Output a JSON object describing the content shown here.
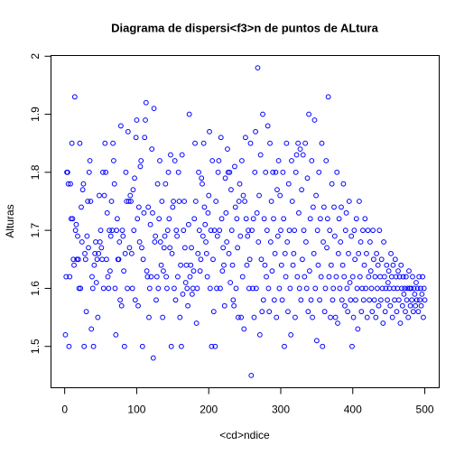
{
  "chart_data": {
    "type": "scatter",
    "title": "Diagrama de dispersi<f3>n de puntos de ALtura",
    "xlabel": "<cd>ndice",
    "ylabel": "Alturas",
    "color": "#0000ff",
    "xlim": [
      -19,
      520
    ],
    "xticks": [
      0,
      100,
      200,
      300,
      400,
      500
    ],
    "ylim": [
      1.4288,
      2.0012
    ],
    "yticks": [
      1.5,
      1.6,
      1.7,
      1.8,
      1.9,
      2.0
    ],
    "values": [
      1.52,
      1.62,
      1.8,
      1.8,
      1.78,
      1.5,
      1.62,
      1.78,
      1.72,
      1.85,
      1.72,
      1.65,
      1.64,
      1.93,
      1.7,
      1.71,
      1.65,
      1.69,
      1.65,
      1.6,
      1.85,
      1.6,
      1.74,
      1.68,
      1.77,
      1.78,
      1.5,
      1.66,
      1.65,
      1.56,
      1.69,
      1.75,
      1.67,
      1.8,
      1.82,
      1.75,
      1.53,
      1.62,
      1.6,
      1.5,
      1.64,
      1.66,
      1.68,
      1.61,
      1.65,
      1.55,
      1.66,
      1.76,
      1.68,
      1.7,
      1.67,
      1.65,
      1.8,
      1.6,
      1.76,
      1.85,
      1.8,
      1.65,
      1.73,
      1.62,
      1.6,
      1.7,
      1.63,
      1.69,
      1.75,
      1.7,
      1.85,
      1.82,
      1.78,
      1.6,
      1.52,
      1.7,
      1.72,
      1.65,
      1.65,
      1.68,
      1.58,
      1.88,
      1.57,
      1.7,
      1.69,
      1.63,
      1.5,
      1.66,
      1.8,
      1.75,
      1.6,
      1.87,
      1.75,
      1.67,
      1.76,
      1.75,
      1.66,
      1.6,
      1.77,
      1.7,
      1.79,
      1.58,
      1.86,
      1.89,
      1.72,
      1.57,
      1.74,
      1.68,
      1.81,
      1.82,
      1.67,
      1.5,
      1.65,
      1.73,
      1.86,
      1.89,
      1.92,
      1.63,
      1.62,
      1.74,
      1.55,
      1.6,
      1.71,
      1.62,
      1.84,
      1.73,
      1.48,
      1.91,
      1.68,
      1.69,
      1.58,
      1.62,
      1.78,
      1.6,
      1.72,
      1.82,
      1.68,
      1.64,
      1.75,
      1.55,
      1.63,
      1.67,
      1.69,
      1.78,
      1.62,
      1.6,
      1.7,
      1.8,
      1.72,
      1.67,
      1.83,
      1.5,
      1.66,
      1.74,
      1.75,
      1.6,
      1.82,
      1.58,
      1.7,
      1.69,
      1.62,
      1.8,
      1.75,
      1.55,
      1.64,
      1.5,
      1.83,
      1.59,
      1.7,
      1.75,
      1.67,
      1.61,
      1.64,
      1.6,
      1.57,
      1.71,
      1.9,
      1.62,
      1.64,
      1.67,
      1.59,
      1.6,
      1.63,
      1.72,
      1.85,
      1.75,
      1.54,
      1.6,
      1.66,
      1.8,
      1.7,
      1.63,
      1.65,
      1.79,
      1.78,
      1.69,
      1.85,
      1.74,
      1.71,
      1.68,
      1.66,
      1.62,
      1.73,
      1.76,
      1.87,
      1.6,
      1.7,
      1.5,
      1.82,
      1.65,
      1.56,
      1.7,
      1.5,
      1.75,
      1.6,
      1.69,
      1.8,
      1.82,
      1.7,
      1.6,
      1.86,
      1.72,
      1.63,
      1.67,
      1.64,
      1.57,
      1.79,
      1.73,
      1.68,
      1.84,
      1.8,
      1.66,
      1.8,
      1.61,
      1.77,
      1.7,
      1.64,
      1.58,
      1.57,
      1.81,
      1.74,
      1.6,
      1.72,
      1.67,
      1.55,
      1.75,
      1.78,
      1.69,
      1.55,
      1.82,
      1.62,
      1.76,
      1.53,
      1.75,
      1.86,
      1.72,
      1.64,
      1.69,
      1.7,
      1.6,
      1.65,
      1.85,
      1.45,
      1.7,
      1.6,
      1.72,
      1.55,
      1.8,
      1.87,
      1.6,
      1.73,
      1.98,
      1.68,
      1.76,
      1.52,
      1.83,
      1.65,
      1.56,
      1.9,
      1.58,
      1.72,
      1.64,
      1.8,
      1.62,
      1.7,
      1.88,
      1.6,
      1.56,
      1.85,
      1.68,
      1.75,
      1.63,
      1.8,
      1.72,
      1.58,
      1.66,
      1.8,
      1.55,
      1.77,
      1.69,
      1.82,
      1.6,
      1.76,
      1.7,
      1.64,
      1.58,
      1.8,
      1.72,
      1.5,
      1.66,
      1.62,
      1.85,
      1.68,
      1.56,
      1.78,
      1.7,
      1.6,
      1.52,
      1.82,
      1.75,
      1.64,
      1.66,
      1.7,
      1.55,
      1.8,
      1.83,
      1.62,
      1.85,
      1.73,
      1.6,
      1.84,
      1.58,
      1.77,
      1.65,
      1.83,
      1.7,
      1.62,
      1.85,
      1.68,
      1.6,
      1.79,
      1.56,
      1.9,
      1.63,
      1.72,
      1.58,
      1.82,
      1.55,
      1.74,
      1.66,
      1.89,
      1.6,
      1.76,
      1.51,
      1.7,
      1.64,
      1.8,
      1.58,
      1.72,
      1.62,
      1.85,
      1.5,
      1.68,
      1.74,
      1.56,
      1.6,
      1.82,
      1.67,
      1.72,
      1.93,
      1.62,
      1.7,
      1.55,
      1.64,
      1.78,
      1.58,
      1.6,
      1.74,
      1.69,
      1.55,
      1.62,
      1.8,
      1.54,
      1.66,
      1.72,
      1.6,
      1.68,
      1.74,
      1.58,
      1.64,
      1.78,
      1.62,
      1.57,
      1.7,
      1.73,
      1.6,
      1.56,
      1.66,
      1.75,
      1.61,
      1.58,
      1.69,
      1.5,
      1.62,
      1.55,
      1.7,
      1.65,
      1.58,
      1.72,
      1.6,
      1.53,
      1.66,
      1.75,
      1.62,
      1.68,
      1.56,
      1.6,
      1.7,
      1.58,
      1.64,
      1.72,
      1.6,
      1.66,
      1.55,
      1.7,
      1.62,
      1.58,
      1.68,
      1.63,
      1.6,
      1.56,
      1.7,
      1.65,
      1.58,
      1.62,
      1.55,
      1.66,
      1.6,
      1.64,
      1.57,
      1.7,
      1.62,
      1.58,
      1.65,
      1.6,
      1.54,
      1.68,
      1.62,
      1.56,
      1.6,
      1.64,
      1.58,
      1.61,
      1.63,
      1.6,
      1.57,
      1.66,
      1.62,
      1.55,
      1.64,
      1.6,
      1.58,
      1.65,
      1.62,
      1.56,
      1.6,
      1.63,
      1.58,
      1.62,
      1.54,
      1.64,
      1.6,
      1.57,
      1.62,
      1.59,
      1.6,
      1.56,
      1.62,
      1.58,
      1.6,
      1.55,
      1.63,
      1.6,
      1.57,
      1.6,
      1.58,
      1.62,
      1.56,
      1.6,
      1.59,
      1.57,
      1.61,
      1.58,
      1.6,
      1.56,
      1.62,
      1.58,
      1.6,
      1.57,
      1.59,
      1.62,
      1.55,
      1.6,
      1.58
    ]
  }
}
